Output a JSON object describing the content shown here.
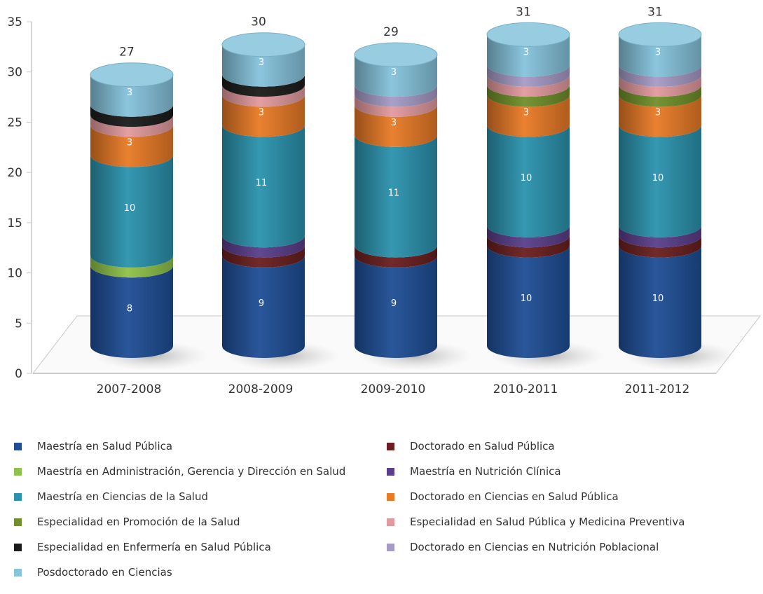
{
  "chart_data": {
    "type": "bar",
    "stacked": true,
    "style": "3d-cylinder",
    "categories": [
      "2007-2008",
      "2008-2009",
      "2009-2010",
      "2010-2011",
      "2011-2012"
    ],
    "totals": [
      27,
      30,
      29,
      31,
      31
    ],
    "ylim": [
      0,
      35
    ],
    "yticks": [
      0,
      5,
      10,
      15,
      20,
      25,
      30,
      35
    ],
    "legend_placement": "bottom",
    "series": [
      {
        "name": "Maestría en Salud Pública",
        "color": "#1f4e96",
        "values": [
          8,
          9,
          9,
          10,
          10
        ]
      },
      {
        "name": "Maestría en Administración, Gerencia y Dirección en Salud",
        "color": "#8fc24a",
        "values": [
          1,
          0,
          0,
          0,
          0
        ]
      },
      {
        "name": "Doctorado en Salud Pública",
        "color": "#6b1f1f",
        "values": [
          0,
          1,
          1,
          1,
          1
        ]
      },
      {
        "name": "Maestría en Nutrición Clínica",
        "color": "#5a3e8a",
        "values": [
          0,
          1,
          0,
          1,
          1
        ]
      },
      {
        "name": "Maestría en Ciencias de la Salud",
        "color": "#2b93ae",
        "values": [
          10,
          11,
          11,
          10,
          10
        ]
      },
      {
        "name": "Doctorado en Ciencias en Salud Pública",
        "color": "#e97a26",
        "values": [
          3,
          3,
          3,
          3,
          3
        ]
      },
      {
        "name": "Especialidad en Promoción de la Salud",
        "color": "#6f8f2a",
        "values": [
          0,
          0,
          0,
          1,
          1
        ]
      },
      {
        "name": "Especialidad en Salud Pública y Medicina Preventiva",
        "color": "#e39a9e",
        "values": [
          1,
          1,
          1,
          1,
          1
        ]
      },
      {
        "name": "Especialidad en Enfermería en Salud Pública",
        "color": "#1c1c1c",
        "values": [
          1,
          1,
          0,
          0,
          0
        ]
      },
      {
        "name": "Doctorado en Ciencias en Nutrición Poblacional",
        "color": "#a69bc6",
        "values": [
          0,
          0,
          1,
          1,
          1
        ]
      },
      {
        "name": "Posdoctorado en Ciencias",
        "color": "#86c3dc",
        "values": [
          3,
          3,
          3,
          3,
          3
        ]
      }
    ],
    "legend_order": [
      0,
      2,
      1,
      3,
      4,
      5,
      6,
      7,
      8,
      9,
      10
    ]
  }
}
